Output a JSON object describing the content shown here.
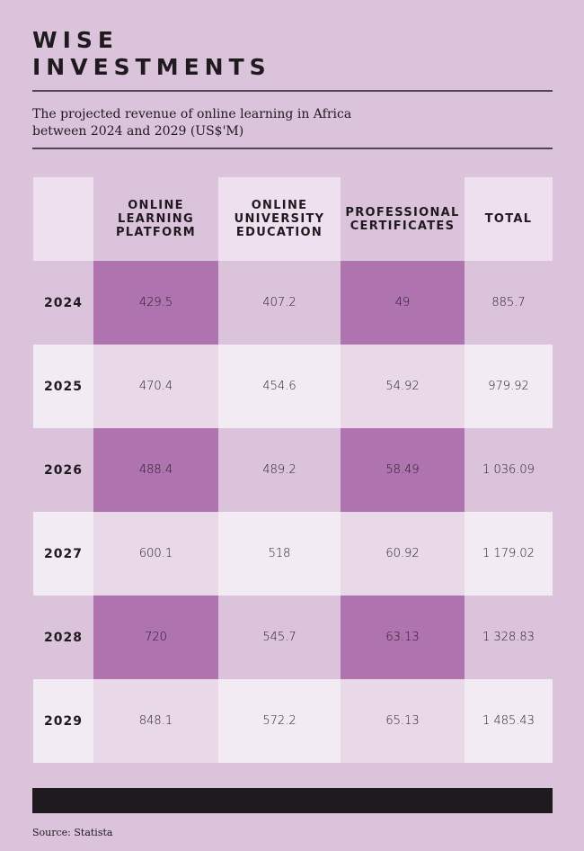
{
  "title_line1": "WISE",
  "title_line2": "INVESTMENTS",
  "subtitle": "The projected revenue of online learning in Africa between 2024 and 2029 (US$'M)",
  "source": "Source: Statista",
  "colors": {
    "background": "#dcc3dc",
    "highlight": "#af74b0",
    "light": "#f3ebf3",
    "mid": "#e8d8e8"
  },
  "chart_data": {
    "type": "table",
    "title": "WISE INVESTMENTS",
    "columns": [
      "",
      "ONLINE LEARNING PLATFORM",
      "ONLINE UNIVERSITY EDUCATION",
      "PROFESSIONAL CERTIFICATES",
      "TOTAL"
    ],
    "rows": [
      [
        "2024",
        "429.5",
        "407.2",
        "49",
        "885.7"
      ],
      [
        "2025",
        "470.4",
        "454.6",
        "54.92",
        "979.92"
      ],
      [
        "2026",
        "488.4",
        "489.2",
        "58.49",
        "1 036.09"
      ],
      [
        "2027",
        "600.1",
        "518",
        "60.92",
        "1 179.02"
      ],
      [
        "2028",
        "720",
        "545.7",
        "63.13",
        "1 328.83"
      ],
      [
        "2029",
        "848.1",
        "572.2",
        "65.13",
        "1 485.43"
      ]
    ]
  }
}
